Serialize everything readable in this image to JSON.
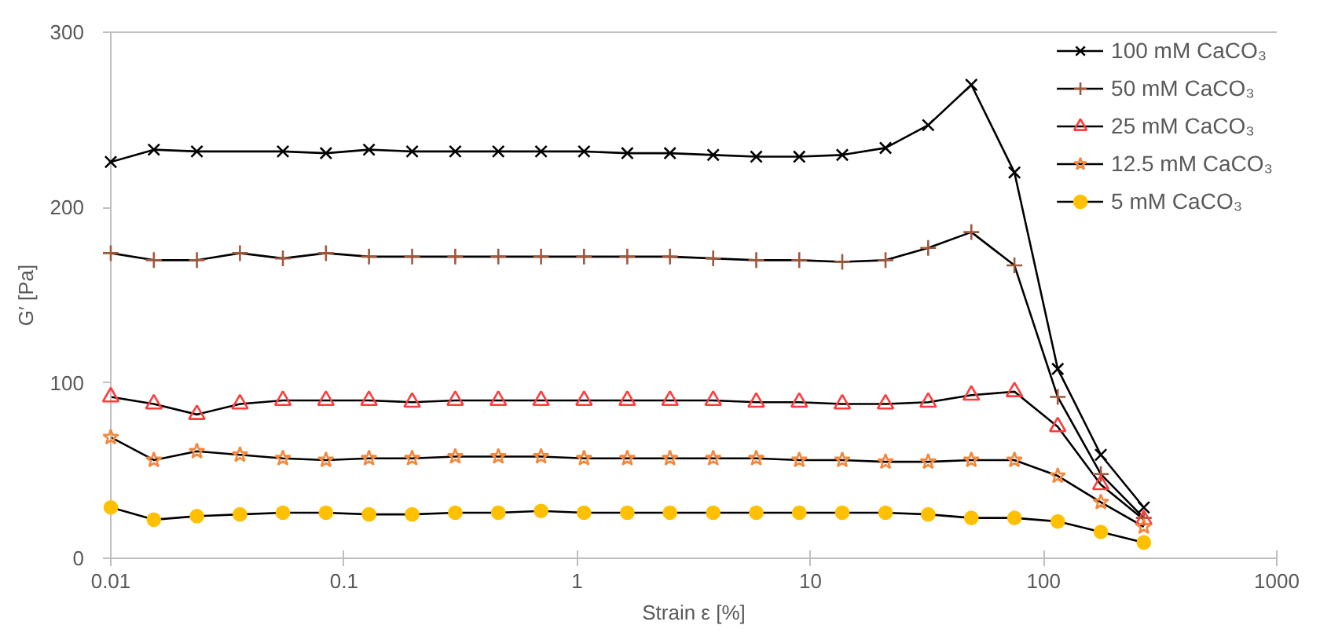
{
  "chart_data": {
    "type": "line",
    "xlabel": "Strain ε [%]",
    "ylabel": "G′ [Pa]",
    "log": "x",
    "x": [
      0.01,
      0.0153,
      0.0234,
      0.0358,
      0.0547,
      0.0837,
      0.128,
      0.196,
      0.3,
      0.459,
      0.7,
      1.07,
      1.64,
      2.5,
      3.83,
      5.86,
      8.96,
      13.7,
      21,
      32,
      49,
      75,
      115,
      176,
      269
    ],
    "xlim": [
      0.01,
      1000
    ],
    "xticks": [
      0.01,
      0.1,
      1,
      10,
      100,
      1000
    ],
    "ylim": [
      0,
      300
    ],
    "yticks": [
      0,
      100,
      200,
      300
    ],
    "grid": false,
    "legend": "top right",
    "line_style": "solid",
    "series": [
      {
        "name": "100 mM CaCO₃",
        "color": "#000000",
        "marker": "x",
        "x": [
          0.01,
          0.0153,
          0.0234,
          0.0547,
          0.0837,
          0.128,
          0.196,
          0.3,
          0.459,
          0.7,
          1.07,
          1.64,
          2.5,
          3.83,
          5.86,
          8.96,
          13.7,
          21,
          32,
          49,
          75,
          115,
          176,
          269
        ],
        "values": [
          226,
          233,
          232,
          232,
          231,
          233,
          232,
          232,
          232,
          232,
          232,
          231,
          231,
          230,
          229,
          229,
          230,
          234,
          247,
          270,
          220,
          108,
          59,
          29
        ]
      },
      {
        "name": "50 mM CaCO₃",
        "color": "#a0583c",
        "marker": "cross",
        "values": [
          174,
          170,
          170,
          174,
          171,
          174,
          172,
          172,
          172,
          172,
          172,
          172,
          172,
          172,
          171,
          170,
          170,
          169,
          170,
          177,
          186,
          167,
          92,
          48,
          23
        ]
      },
      {
        "name": "25 mM CaCO₃",
        "color": "#ff3b3b",
        "marker": "triangle",
        "values": [
          92,
          88,
          82,
          88,
          90,
          90,
          90,
          89,
          90,
          90,
          90,
          90,
          90,
          90,
          90,
          89,
          89,
          88,
          88,
          89,
          93,
          95,
          75,
          42,
          22
        ]
      },
      {
        "name": "12.5 mM CaCO₃",
        "color": "#f4873a",
        "marker": "star",
        "values": [
          69,
          56,
          61,
          59,
          57,
          56,
          57,
          57,
          58,
          58,
          58,
          57,
          57,
          57,
          57,
          57,
          56,
          56,
          55,
          55,
          56,
          56,
          47,
          32,
          18
        ]
      },
      {
        "name": "5 mM CaCO₃",
        "color": "#ffc000",
        "marker": "circle",
        "values": [
          29,
          22,
          24,
          25,
          26,
          26,
          25,
          25,
          26,
          26,
          27,
          26,
          26,
          26,
          26,
          26,
          26,
          26,
          26,
          25,
          23,
          23,
          21,
          15,
          9
        ]
      }
    ]
  }
}
